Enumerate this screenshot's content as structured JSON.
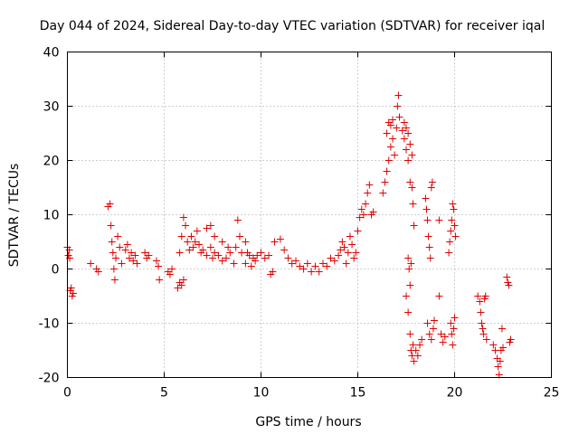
{
  "chart_data": {
    "type": "scatter",
    "title": "Day 044 of 2024, Sidereal Day-to-day VTEC variation (SDTVAR) for receiver iqal",
    "xlabel": "GPS time / hours",
    "ylabel": "SDTVAR / TECUs",
    "xlim": [
      0,
      25
    ],
    "ylim": [
      -20,
      40
    ],
    "xticks": [
      0,
      5,
      10,
      15,
      20,
      25
    ],
    "yticks": [
      -20,
      -10,
      0,
      10,
      20,
      30,
      40
    ],
    "xtick_labels": [
      "0",
      "5",
      "10",
      "15",
      "20",
      "25"
    ],
    "ytick_labels": [
      "-20",
      "-10",
      "0",
      "10",
      "20",
      "30",
      "40"
    ],
    "grid": true,
    "marker": "+",
    "series": [
      {
        "name": "SDTVAR",
        "color": "#e00000",
        "points": [
          [
            0.0,
            4.0
          ],
          [
            0.05,
            2.5
          ],
          [
            0.1,
            3.5
          ],
          [
            0.12,
            2.0
          ],
          [
            0.15,
            -4.0
          ],
          [
            0.2,
            -3.5
          ],
          [
            0.25,
            -5.0
          ],
          [
            0.3,
            -4.5
          ],
          [
            1.2,
            1.0
          ],
          [
            1.5,
            0.0
          ],
          [
            1.6,
            -0.5
          ],
          [
            2.1,
            11.5
          ],
          [
            2.2,
            12.0
          ],
          [
            2.25,
            8.0
          ],
          [
            2.3,
            5.0
          ],
          [
            2.35,
            3.0
          ],
          [
            2.4,
            0.0
          ],
          [
            2.45,
            -2.0
          ],
          [
            2.5,
            2.0
          ],
          [
            2.6,
            6.0
          ],
          [
            2.7,
            4.0
          ],
          [
            2.8,
            1.0
          ],
          [
            3.0,
            3.5
          ],
          [
            3.1,
            4.5
          ],
          [
            3.2,
            2.0
          ],
          [
            3.3,
            3.0
          ],
          [
            3.4,
            1.5
          ],
          [
            3.5,
            2.5
          ],
          [
            3.6,
            1.0
          ],
          [
            4.0,
            3.0
          ],
          [
            4.1,
            2.0
          ],
          [
            4.2,
            2.5
          ],
          [
            4.6,
            1.5
          ],
          [
            4.7,
            0.5
          ],
          [
            4.75,
            -2.0
          ],
          [
            5.2,
            -0.5
          ],
          [
            5.3,
            -1.0
          ],
          [
            5.4,
            0.0
          ],
          [
            5.7,
            -3.5
          ],
          [
            5.8,
            -2.5
          ],
          [
            5.9,
            -3.0
          ],
          [
            6.0,
            -2.0
          ],
          [
            5.8,
            3.0
          ],
          [
            5.9,
            6.0
          ],
          [
            6.0,
            9.5
          ],
          [
            6.1,
            8.0
          ],
          [
            6.2,
            5.0
          ],
          [
            6.3,
            3.5
          ],
          [
            6.4,
            6.0
          ],
          [
            6.5,
            4.0
          ],
          [
            6.6,
            5.0
          ],
          [
            6.7,
            7.0
          ],
          [
            6.8,
            4.5
          ],
          [
            6.9,
            3.0
          ],
          [
            7.0,
            3.5
          ],
          [
            7.2,
            2.5
          ],
          [
            7.4,
            4.0
          ],
          [
            7.5,
            2.0
          ],
          [
            7.6,
            3.0
          ],
          [
            7.8,
            2.5
          ],
          [
            8.0,
            1.5
          ],
          [
            8.2,
            2.0
          ],
          [
            8.4,
            3.0
          ],
          [
            8.6,
            1.0
          ],
          [
            8.7,
            4.0
          ],
          [
            8.8,
            9.0
          ],
          [
            8.9,
            6.0
          ],
          [
            9.0,
            3.0
          ],
          [
            9.2,
            1.0
          ],
          [
            9.4,
            2.5
          ],
          [
            9.5,
            0.5
          ],
          [
            9.7,
            1.5
          ],
          [
            7.2,
            7.5
          ],
          [
            7.4,
            8.0
          ],
          [
            7.6,
            6.0
          ],
          [
            8.0,
            5.0
          ],
          [
            8.3,
            4.0
          ],
          [
            9.2,
            5.0
          ],
          [
            9.3,
            3.0
          ],
          [
            9.6,
            2.0
          ],
          [
            9.8,
            2.5
          ],
          [
            10.0,
            3.0
          ],
          [
            10.2,
            2.0
          ],
          [
            10.4,
            2.5
          ],
          [
            10.5,
            -1.0
          ],
          [
            10.6,
            -0.5
          ],
          [
            10.7,
            5.0
          ],
          [
            11.0,
            5.5
          ],
          [
            11.2,
            3.5
          ],
          [
            11.4,
            2.0
          ],
          [
            11.6,
            1.0
          ],
          [
            11.8,
            1.5
          ],
          [
            12.0,
            0.5
          ],
          [
            12.2,
            0.0
          ],
          [
            12.4,
            1.0
          ],
          [
            12.6,
            -0.5
          ],
          [
            12.8,
            0.5
          ],
          [
            13.0,
            -0.5
          ],
          [
            13.2,
            1.0
          ],
          [
            13.4,
            0.5
          ],
          [
            13.6,
            2.0
          ],
          [
            13.8,
            1.5
          ],
          [
            14.0,
            2.5
          ],
          [
            14.1,
            3.5
          ],
          [
            14.2,
            5.0
          ],
          [
            14.3,
            4.0
          ],
          [
            14.4,
            1.0
          ],
          [
            14.5,
            3.0
          ],
          [
            14.6,
            6.0
          ],
          [
            14.7,
            4.5
          ],
          [
            14.8,
            2.0
          ],
          [
            14.9,
            3.0
          ],
          [
            15.0,
            7.0
          ],
          [
            15.1,
            9.5
          ],
          [
            15.2,
            11.0
          ],
          [
            15.3,
            10.0
          ],
          [
            15.4,
            12.0
          ],
          [
            15.5,
            14.0
          ],
          [
            15.6,
            15.5
          ],
          [
            15.7,
            10.0
          ],
          [
            15.8,
            10.5
          ],
          [
            16.3,
            14.0
          ],
          [
            16.4,
            16.0
          ],
          [
            16.5,
            18.0
          ],
          [
            16.6,
            20.0
          ],
          [
            16.7,
            22.5
          ],
          [
            16.8,
            24.0
          ],
          [
            16.9,
            21.0
          ],
          [
            17.0,
            26.0
          ],
          [
            17.05,
            30.0
          ],
          [
            17.1,
            32.0
          ],
          [
            17.15,
            28.0
          ],
          [
            16.5,
            25.0
          ],
          [
            16.6,
            27.0
          ],
          [
            16.7,
            26.5
          ],
          [
            16.8,
            27.5
          ],
          [
            17.3,
            25.5
          ],
          [
            17.4,
            24.0
          ],
          [
            17.5,
            22.0
          ],
          [
            17.6,
            20.0
          ],
          [
            17.7,
            16.0
          ],
          [
            17.8,
            15.0
          ],
          [
            17.85,
            12.0
          ],
          [
            17.9,
            8.0
          ],
          [
            17.4,
            27.0
          ],
          [
            17.5,
            26.0
          ],
          [
            17.6,
            25.0
          ],
          [
            17.7,
            23.0
          ],
          [
            17.8,
            21.0
          ],
          [
            17.5,
            -5.0
          ],
          [
            17.6,
            -8.0
          ],
          [
            17.7,
            -12.0
          ],
          [
            17.75,
            -15.0
          ],
          [
            17.8,
            -16.0
          ],
          [
            17.85,
            -14.0
          ],
          [
            17.9,
            -17.0
          ],
          [
            18.0,
            -15.0
          ],
          [
            18.1,
            -16.0
          ],
          [
            18.2,
            -14.0
          ],
          [
            18.3,
            -13.0
          ],
          [
            17.6,
            2.0
          ],
          [
            17.65,
            0.0
          ],
          [
            17.7,
            -3.0
          ],
          [
            17.75,
            1.0
          ],
          [
            18.5,
            13.0
          ],
          [
            18.55,
            11.0
          ],
          [
            18.6,
            9.0
          ],
          [
            18.65,
            6.0
          ],
          [
            18.7,
            4.0
          ],
          [
            18.75,
            2.0
          ],
          [
            18.8,
            15.0
          ],
          [
            18.85,
            16.0
          ],
          [
            18.6,
            -10.0
          ],
          [
            18.7,
            -12.0
          ],
          [
            18.8,
            -13.0
          ],
          [
            18.9,
            -11.0
          ],
          [
            18.95,
            -9.5
          ],
          [
            19.2,
            -5.0
          ],
          [
            19.3,
            -12.0
          ],
          [
            19.4,
            -13.5
          ],
          [
            19.5,
            -12.5
          ],
          [
            19.2,
            9.0
          ],
          [
            19.7,
            3.0
          ],
          [
            19.75,
            5.0
          ],
          [
            19.8,
            7.0
          ],
          [
            19.85,
            9.0
          ],
          [
            19.9,
            12.0
          ],
          [
            19.95,
            11.0
          ],
          [
            20.0,
            8.0
          ],
          [
            20.05,
            6.0
          ],
          [
            19.8,
            -10.0
          ],
          [
            19.85,
            -12.0
          ],
          [
            19.9,
            -14.0
          ],
          [
            19.95,
            -11.0
          ],
          [
            20.0,
            -9.0
          ],
          [
            21.2,
            -5.0
          ],
          [
            21.3,
            -6.0
          ],
          [
            21.35,
            -8.0
          ],
          [
            21.4,
            -10.0
          ],
          [
            21.45,
            -11.0
          ],
          [
            21.5,
            -12.0
          ],
          [
            21.55,
            -5.5
          ],
          [
            21.6,
            -5.0
          ],
          [
            21.65,
            -13.0
          ],
          [
            22.0,
            -14.0
          ],
          [
            22.1,
            -15.0
          ],
          [
            22.2,
            -16.5
          ],
          [
            22.25,
            -18.0
          ],
          [
            22.3,
            -19.5
          ],
          [
            22.35,
            -17.0
          ],
          [
            22.4,
            -15.0
          ],
          [
            22.45,
            -11.0
          ],
          [
            22.5,
            -14.5
          ],
          [
            22.7,
            -1.5
          ],
          [
            22.75,
            -2.5
          ],
          [
            22.8,
            -3.0
          ],
          [
            22.85,
            -13.5
          ],
          [
            22.9,
            -13.0
          ]
        ]
      }
    ]
  }
}
